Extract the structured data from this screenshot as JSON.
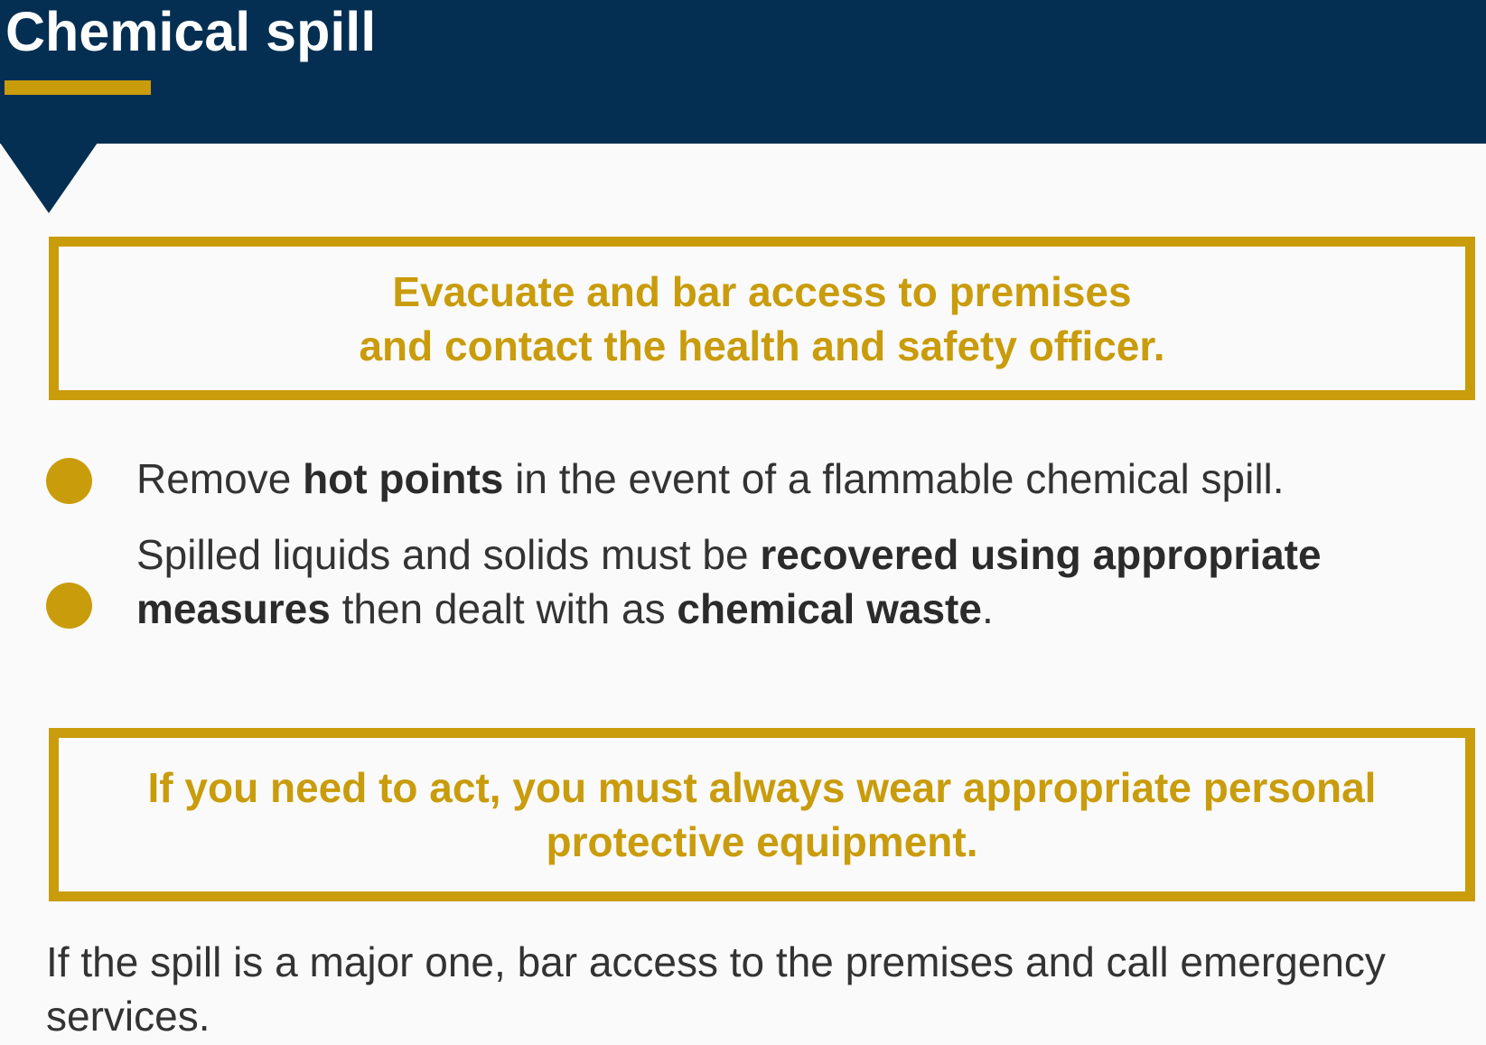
{
  "colors": {
    "header_bg": "#042f52",
    "accent_gold": "#c99c0c",
    "body_text": "#333333",
    "page_bg": "#fafafa"
  },
  "header": {
    "title": "Chemical spill"
  },
  "callout_top": {
    "line1": "Evacuate and bar access to premises",
    "line2": "and contact the health and safety officer."
  },
  "items": [
    {
      "icon": "bullet-dot",
      "parts": [
        "Remove ",
        "hot points",
        " in the event of a flammable chemical spill."
      ]
    },
    {
      "icon": "bullet-dot",
      "parts": [
        "Spilled liquids and solids must be ",
        "recovered using appropriate measures",
        " then dealt with as ",
        "chemical waste",
        "."
      ]
    }
  ],
  "callout_bottom": {
    "text": "If you need to act, you must always wear appropriate personal protective equipment."
  },
  "footer": {
    "text": "If the spill is a major one, bar access to the premises and call emergency services."
  }
}
